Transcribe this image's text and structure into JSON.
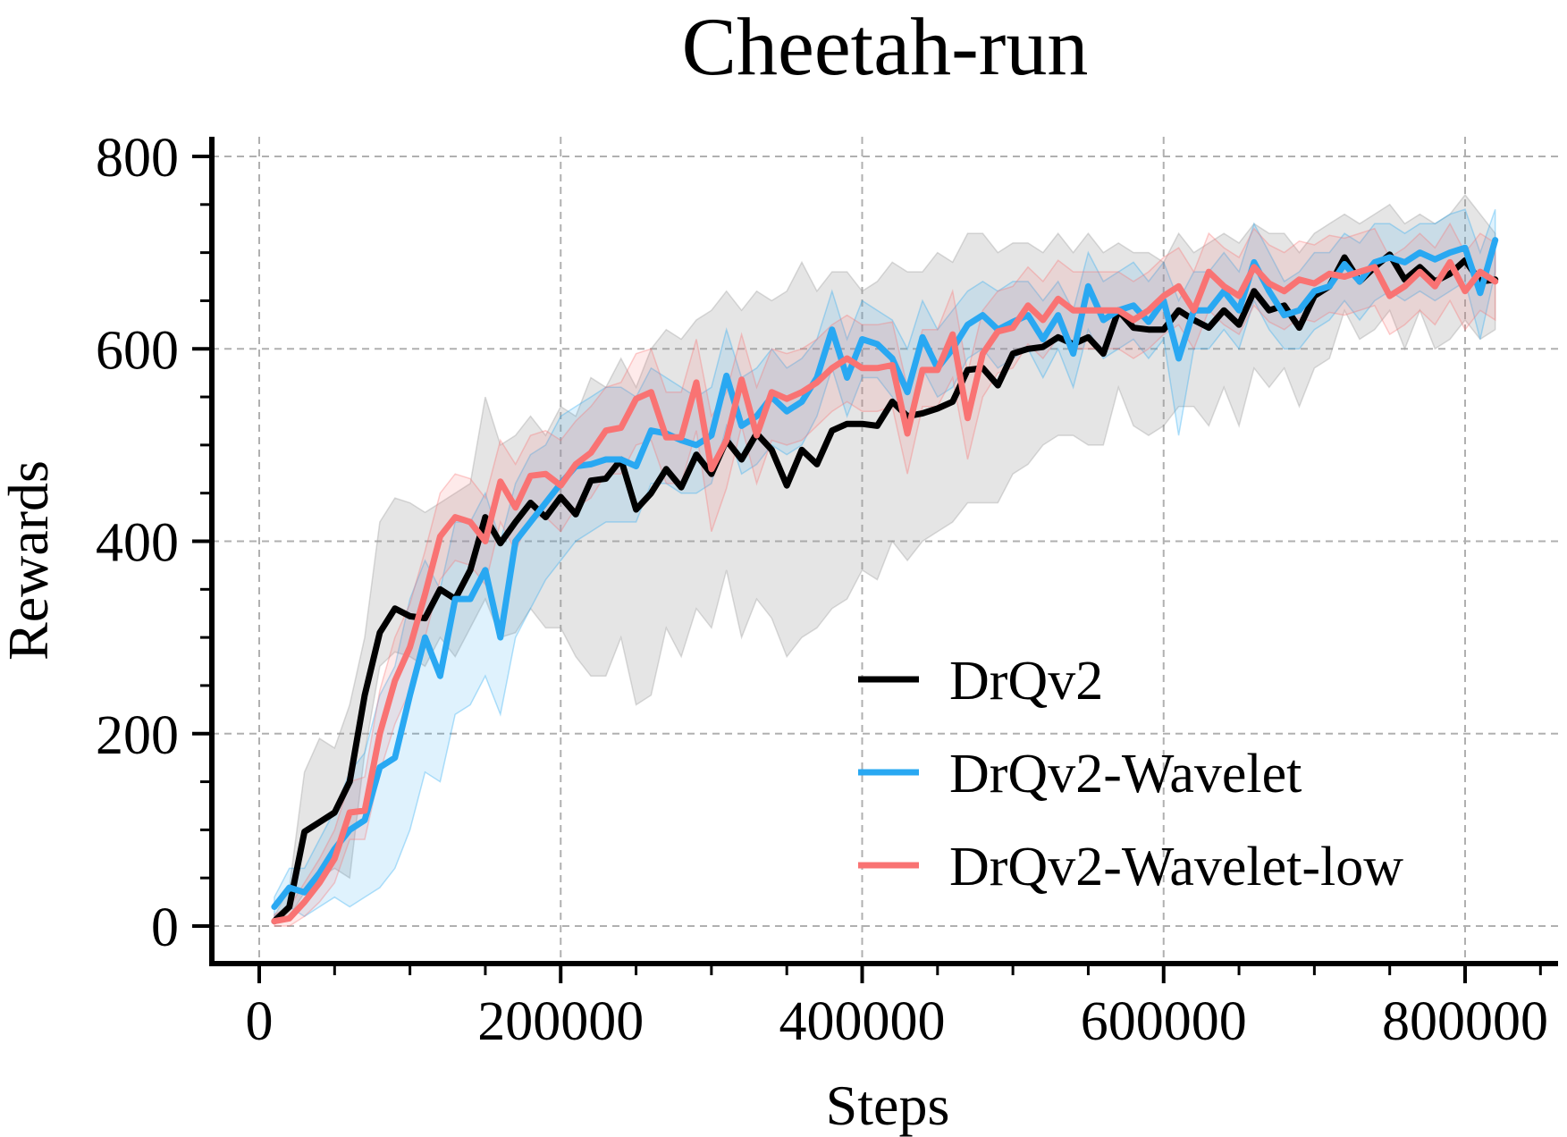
{
  "chart_data": {
    "type": "line",
    "title": "Cheetah-run",
    "xlabel": "Steps",
    "ylabel": "Rewards",
    "xlim": [
      -15000,
      862000
    ],
    "ylim": [
      -40,
      810
    ],
    "xticks": [
      0,
      200000,
      400000,
      600000,
      800000
    ],
    "xtick_labels": [
      "0",
      "200000",
      "400000",
      "600000",
      "800000"
    ],
    "yticks": [
      0,
      200,
      400,
      600,
      800
    ],
    "ytick_labels": [
      "0",
      "200",
      "400",
      "600",
      "800"
    ],
    "grid": true,
    "legend_position": "lower-right",
    "x": [
      10000,
      20000,
      30000,
      40000,
      50000,
      60000,
      70000,
      80000,
      90000,
      100000,
      110000,
      120000,
      130000,
      140000,
      150000,
      160000,
      170000,
      180000,
      190000,
      200000,
      210000,
      220000,
      230000,
      240000,
      250000,
      260000,
      270000,
      280000,
      290000,
      300000,
      310000,
      320000,
      330000,
      340000,
      350000,
      360000,
      370000,
      380000,
      390000,
      400000,
      410000,
      420000,
      430000,
      440000,
      450000,
      460000,
      470000,
      480000,
      490000,
      500000,
      510000,
      520000,
      530000,
      540000,
      550000,
      560000,
      570000,
      580000,
      590000,
      600000,
      610000,
      620000,
      630000,
      640000,
      650000,
      660000,
      670000,
      680000,
      690000,
      700000,
      710000,
      720000,
      730000,
      740000,
      750000,
      760000,
      770000,
      780000,
      790000,
      800000,
      810000,
      820000
    ],
    "series": [
      {
        "name": "DrQv2",
        "color": "#000000",
        "values": [
          5,
          20,
          98,
          108,
          118,
          150,
          240,
          305,
          330,
          322,
          320,
          350,
          340,
          370,
          425,
          398,
          420,
          440,
          425,
          446,
          428,
          463,
          465,
          485,
          433,
          450,
          475,
          456,
          490,
          470,
          505,
          485,
          512,
          495,
          458,
          495,
          480,
          515,
          522,
          522,
          520,
          545,
          530,
          533,
          538,
          545,
          578,
          580,
          562,
          595,
          600,
          602,
          612,
          605,
          612,
          595,
          640,
          622,
          620,
          620,
          640,
          630,
          622,
          640,
          625,
          660,
          640,
          645,
          622,
          655,
          665,
          695,
          670,
          685,
          698,
          672,
          685,
          670,
          678,
          692,
          670,
          672
        ],
        "lower": [
          5,
          10,
          35,
          50,
          60,
          50,
          180,
          270,
          285,
          280,
          270,
          300,
          280,
          310,
          340,
          300,
          305,
          330,
          310,
          310,
          280,
          260,
          260,
          300,
          230,
          240,
          310,
          280,
          330,
          310,
          370,
          300,
          340,
          320,
          280,
          300,
          310,
          330,
          340,
          370,
          360,
          400,
          380,
          400,
          410,
          420,
          440,
          440,
          440,
          470,
          480,
          500,
          510,
          510,
          500,
          500,
          560,
          520,
          510,
          520,
          540,
          540,
          520,
          560,
          520,
          580,
          560,
          580,
          540,
          580,
          590,
          640,
          610,
          620,
          640,
          600,
          640,
          600,
          610,
          630,
          610,
          620
        ],
        "upper": [
          10,
          40,
          160,
          195,
          185,
          230,
          300,
          420,
          445,
          440,
          430,
          440,
          450,
          460,
          550,
          500,
          510,
          530,
          510,
          540,
          530,
          570,
          560,
          590,
          560,
          600,
          620,
          610,
          630,
          640,
          660,
          640,
          660,
          650,
          660,
          690,
          660,
          680,
          680,
          660,
          670,
          690,
          680,
          680,
          700,
          690,
          720,
          720,
          700,
          710,
          710,
          700,
          720,
          700,
          720,
          700,
          710,
          700,
          700,
          690,
          720,
          700,
          710,
          720,
          710,
          730,
          720,
          720,
          700,
          720,
          730,
          740,
          730,
          740,
          750,
          730,
          740,
          730,
          740,
          760,
          740,
          720
        ]
      },
      {
        "name": "DrQv2-Wavelet",
        "color": "#29a8f2",
        "values": [
          20,
          40,
          35,
          55,
          80,
          100,
          110,
          165,
          175,
          240,
          300,
          260,
          340,
          340,
          370,
          300,
          400,
          420,
          440,
          460,
          478,
          480,
          485,
          485,
          478,
          515,
          512,
          505,
          500,
          510,
          572,
          520,
          530,
          550,
          535,
          545,
          570,
          620,
          570,
          610,
          605,
          590,
          555,
          612,
          580,
          600,
          625,
          635,
          620,
          628,
          635,
          610,
          635,
          595,
          665,
          630,
          640,
          645,
          628,
          650,
          590,
          640,
          640,
          660,
          640,
          690,
          660,
          635,
          640,
          660,
          665,
          688,
          670,
          690,
          695,
          690,
          700,
          693,
          700,
          705,
          658,
          713
        ],
        "lower": [
          10,
          20,
          10,
          20,
          30,
          20,
          30,
          40,
          60,
          100,
          160,
          150,
          220,
          230,
          260,
          220,
          300,
          330,
          360,
          380,
          400,
          410,
          420,
          420,
          420,
          460,
          460,
          450,
          450,
          460,
          520,
          470,
          480,
          500,
          490,
          500,
          530,
          580,
          530,
          570,
          570,
          550,
          520,
          580,
          550,
          560,
          590,
          600,
          580,
          590,
          600,
          570,
          600,
          560,
          620,
          590,
          600,
          610,
          590,
          610,
          510,
          600,
          600,
          620,
          600,
          650,
          620,
          600,
          600,
          620,
          630,
          650,
          630,
          650,
          660,
          650,
          660,
          650,
          660,
          670,
          610,
          680
        ],
        "upper": [
          30,
          60,
          60,
          90,
          120,
          160,
          180,
          240,
          270,
          340,
          380,
          350,
          420,
          420,
          450,
          400,
          460,
          490,
          500,
          530,
          540,
          550,
          560,
          560,
          550,
          580,
          570,
          560,
          550,
          560,
          620,
          570,
          580,
          600,
          580,
          590,
          610,
          660,
          610,
          650,
          640,
          630,
          600,
          650,
          620,
          640,
          660,
          670,
          660,
          670,
          670,
          650,
          670,
          640,
          700,
          670,
          680,
          690,
          670,
          690,
          650,
          680,
          680,
          700,
          680,
          730,
          700,
          670,
          680,
          700,
          700,
          720,
          710,
          730,
          730,
          720,
          730,
          730,
          740,
          745,
          700,
          745
        ]
      },
      {
        "name": "DrQv2-Wavelet-low",
        "color": "#f97373",
        "values": [
          5,
          8,
          25,
          45,
          70,
          118,
          120,
          200,
          255,
          290,
          345,
          405,
          425,
          420,
          400,
          462,
          435,
          468,
          470,
          458,
          480,
          492,
          515,
          518,
          548,
          555,
          508,
          508,
          565,
          475,
          505,
          568,
          510,
          555,
          548,
          555,
          565,
          580,
          590,
          580,
          580,
          583,
          512,
          578,
          578,
          615,
          528,
          595,
          618,
          622,
          645,
          630,
          652,
          640,
          640,
          640,
          640,
          630,
          640,
          655,
          665,
          640,
          680,
          665,
          655,
          685,
          668,
          660,
          672,
          668,
          678,
          675,
          680,
          685,
          655,
          665,
          680,
          665,
          690,
          660,
          680,
          670
        ],
        "lower": [
          0,
          0,
          10,
          25,
          45,
          90,
          90,
          160,
          210,
          245,
          300,
          360,
          380,
          375,
          355,
          420,
          390,
          425,
          425,
          410,
          435,
          445,
          470,
          470,
          500,
          505,
          460,
          460,
          515,
          410,
          455,
          520,
          460,
          505,
          500,
          505,
          520,
          535,
          545,
          535,
          535,
          540,
          470,
          540,
          540,
          570,
          485,
          550,
          575,
          580,
          605,
          590,
          612,
          600,
          600,
          600,
          600,
          590,
          600,
          615,
          625,
          600,
          640,
          625,
          615,
          645,
          628,
          620,
          632,
          628,
          638,
          635,
          640,
          645,
          615,
          625,
          640,
          625,
          650,
          620,
          640,
          630
        ],
        "upper": [
          12,
          20,
          45,
          70,
          100,
          150,
          155,
          245,
          300,
          335,
          390,
          450,
          470,
          465,
          445,
          505,
          480,
          510,
          515,
          505,
          525,
          540,
          560,
          565,
          595,
          600,
          555,
          555,
          610,
          530,
          555,
          615,
          560,
          600,
          595,
          600,
          610,
          625,
          635,
          625,
          625,
          628,
          560,
          620,
          620,
          660,
          575,
          640,
          660,
          665,
          685,
          670,
          692,
          680,
          680,
          680,
          680,
          670,
          680,
          695,
          705,
          680,
          720,
          705,
          695,
          725,
          708,
          700,
          712,
          708,
          718,
          715,
          720,
          725,
          695,
          705,
          720,
          705,
          730,
          700,
          720,
          710
        ]
      }
    ]
  }
}
